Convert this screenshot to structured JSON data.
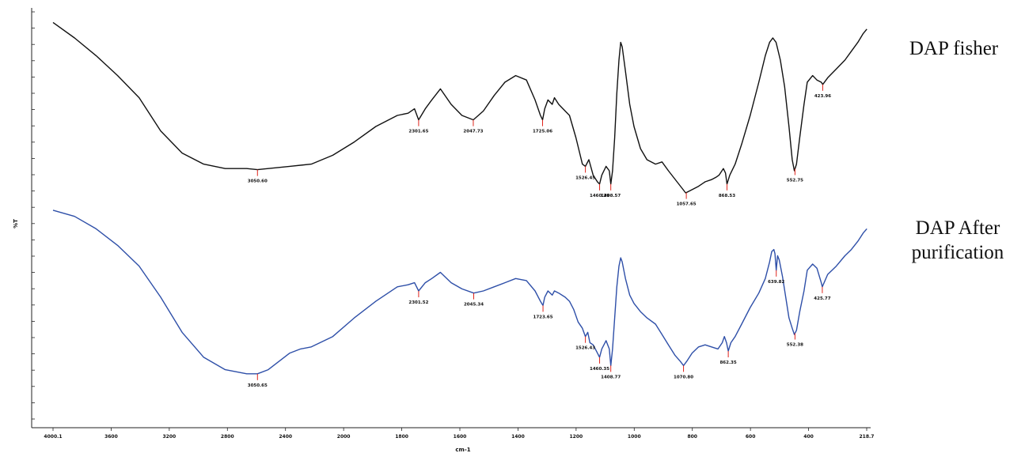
{
  "chart_data": {
    "type": "line",
    "xlabel": "cm-1",
    "ylabel": "%T",
    "xlim": [
      4000.1,
      218.7
    ],
    "x_tick_labels": [
      "4000.1",
      "3600",
      "3200",
      "2800",
      "2400",
      "2000",
      "1800",
      "1600",
      "1400",
      "1200",
      "1000",
      "800",
      "600",
      "400",
      "218.7"
    ],
    "grid": false,
    "series": [
      {
        "name": "DAP fisher",
        "color": "#111111",
        "peaks": [
          {
            "x": 3050,
            "label": "3050.60"
          },
          {
            "x": 2301,
            "label": "2301.65"
          },
          {
            "x": 2047,
            "label": "2047.73"
          },
          {
            "x": 1725,
            "label": "1725.06"
          },
          {
            "x": 1526,
            "label": "1526.45"
          },
          {
            "x": 1460,
            "label": "1460.29"
          },
          {
            "x": 1408,
            "label": "1408.57"
          },
          {
            "x": 1057,
            "label": "1057.65"
          },
          {
            "x": 868,
            "label": "868.53"
          },
          {
            "x": 552,
            "label": "552.75"
          },
          {
            "x": 423,
            "label": "423.96"
          }
        ],
        "points": [
          [
            4000,
            97
          ],
          [
            3900,
            90
          ],
          [
            3800,
            82
          ],
          [
            3700,
            73
          ],
          [
            3600,
            63
          ],
          [
            3500,
            48
          ],
          [
            3400,
            38
          ],
          [
            3300,
            33
          ],
          [
            3200,
            31
          ],
          [
            3100,
            31
          ],
          [
            3050,
            30.5
          ],
          [
            3000,
            31
          ],
          [
            2900,
            32
          ],
          [
            2800,
            33
          ],
          [
            2700,
            37
          ],
          [
            2600,
            43
          ],
          [
            2500,
            50
          ],
          [
            2400,
            55
          ],
          [
            2350,
            56
          ],
          [
            2320,
            58
          ],
          [
            2301,
            53
          ],
          [
            2270,
            58
          ],
          [
            2240,
            62
          ],
          [
            2200,
            67
          ],
          [
            2150,
            60
          ],
          [
            2100,
            55
          ],
          [
            2047,
            53
          ],
          [
            2000,
            57
          ],
          [
            1950,
            64
          ],
          [
            1900,
            70
          ],
          [
            1850,
            73
          ],
          [
            1800,
            71
          ],
          [
            1760,
            62
          ],
          [
            1735,
            55
          ],
          [
            1725,
            53
          ],
          [
            1715,
            58
          ],
          [
            1700,
            62
          ],
          [
            1680,
            60
          ],
          [
            1670,
            63
          ],
          [
            1650,
            60
          ],
          [
            1620,
            57
          ],
          [
            1600,
            55
          ],
          [
            1570,
            45
          ],
          [
            1540,
            33
          ],
          [
            1526,
            32
          ],
          [
            1510,
            35
          ],
          [
            1490,
            28
          ],
          [
            1470,
            25
          ],
          [
            1460,
            24
          ],
          [
            1450,
            28
          ],
          [
            1430,
            32
          ],
          [
            1415,
            30
          ],
          [
            1408,
            24
          ],
          [
            1400,
            30
          ],
          [
            1390,
            45
          ],
          [
            1380,
            65
          ],
          [
            1370,
            80
          ],
          [
            1362,
            88
          ],
          [
            1355,
            86
          ],
          [
            1340,
            75
          ],
          [
            1320,
            60
          ],
          [
            1300,
            50
          ],
          [
            1270,
            40
          ],
          [
            1240,
            35
          ],
          [
            1200,
            33
          ],
          [
            1170,
            34
          ],
          [
            1140,
            30
          ],
          [
            1100,
            25
          ],
          [
            1060,
            20
          ],
          [
            1040,
            21
          ],
          [
            1000,
            23
          ],
          [
            970,
            25
          ],
          [
            940,
            26
          ],
          [
            920,
            27
          ],
          [
            905,
            28
          ],
          [
            885,
            31
          ],
          [
            875,
            29
          ],
          [
            868,
            24
          ],
          [
            855,
            28
          ],
          [
            830,
            33
          ],
          [
            800,
            42
          ],
          [
            760,
            55
          ],
          [
            720,
            70
          ],
          [
            690,
            82
          ],
          [
            670,
            88
          ],
          [
            655,
            90
          ],
          [
            640,
            88
          ],
          [
            620,
            80
          ],
          [
            600,
            68
          ],
          [
            580,
            50
          ],
          [
            565,
            35
          ],
          [
            555,
            30
          ],
          [
            545,
            33
          ],
          [
            530,
            45
          ],
          [
            510,
            60
          ],
          [
            495,
            70
          ],
          [
            470,
            73
          ],
          [
            450,
            71
          ],
          [
            430,
            70
          ],
          [
            423,
            69
          ],
          [
            400,
            72
          ],
          [
            360,
            76
          ],
          [
            320,
            80
          ],
          [
            290,
            84
          ],
          [
            260,
            88
          ],
          [
            235,
            92
          ],
          [
            218,
            94
          ]
        ]
      },
      {
        "name": "DAP After purification",
        "color": "#2e4fa8",
        "peaks": [
          {
            "x": 3050,
            "label": "3050.65"
          },
          {
            "x": 2301,
            "label": "2301.52"
          },
          {
            "x": 2045,
            "label": "2045.34"
          },
          {
            "x": 1723,
            "label": "1723.65"
          },
          {
            "x": 1526,
            "label": "1526.43"
          },
          {
            "x": 1460,
            "label": "1460.35"
          },
          {
            "x": 1408,
            "label": "1408.77"
          },
          {
            "x": 1070,
            "label": "1070.80"
          },
          {
            "x": 862,
            "label": "862.35"
          },
          {
            "x": 639,
            "label": "639.82"
          },
          {
            "x": 552,
            "label": "552.38"
          },
          {
            "x": 425,
            "label": "425.77"
          }
        ],
        "points": [
          [
            4000,
            97
          ],
          [
            3900,
            94
          ],
          [
            3800,
            88
          ],
          [
            3700,
            80
          ],
          [
            3600,
            70
          ],
          [
            3500,
            55
          ],
          [
            3400,
            38
          ],
          [
            3300,
            26
          ],
          [
            3200,
            20
          ],
          [
            3100,
            18
          ],
          [
            3050,
            18
          ],
          [
            3000,
            20
          ],
          [
            2950,
            24
          ],
          [
            2900,
            28
          ],
          [
            2850,
            30
          ],
          [
            2800,
            31
          ],
          [
            2700,
            36
          ],
          [
            2600,
            45
          ],
          [
            2500,
            53
          ],
          [
            2400,
            60
          ],
          [
            2350,
            61
          ],
          [
            2320,
            62
          ],
          [
            2301,
            58
          ],
          [
            2270,
            62
          ],
          [
            2240,
            64
          ],
          [
            2200,
            67
          ],
          [
            2150,
            62
          ],
          [
            2100,
            59
          ],
          [
            2045,
            57
          ],
          [
            2000,
            58
          ],
          [
            1950,
            60
          ],
          [
            1900,
            62
          ],
          [
            1850,
            64
          ],
          [
            1800,
            63
          ],
          [
            1760,
            58
          ],
          [
            1735,
            53
          ],
          [
            1723,
            51
          ],
          [
            1715,
            55
          ],
          [
            1700,
            58
          ],
          [
            1680,
            56
          ],
          [
            1670,
            58
          ],
          [
            1650,
            57
          ],
          [
            1620,
            55
          ],
          [
            1600,
            53
          ],
          [
            1580,
            49
          ],
          [
            1560,
            43
          ],
          [
            1540,
            40
          ],
          [
            1526,
            36
          ],
          [
            1515,
            38
          ],
          [
            1505,
            33
          ],
          [
            1490,
            32
          ],
          [
            1470,
            28
          ],
          [
            1460,
            26
          ],
          [
            1450,
            30
          ],
          [
            1430,
            34
          ],
          [
            1415,
            30
          ],
          [
            1408,
            22
          ],
          [
            1400,
            30
          ],
          [
            1390,
            45
          ],
          [
            1380,
            60
          ],
          [
            1370,
            70
          ],
          [
            1362,
            74
          ],
          [
            1355,
            72
          ],
          [
            1340,
            64
          ],
          [
            1320,
            56
          ],
          [
            1300,
            52
          ],
          [
            1270,
            48
          ],
          [
            1240,
            45
          ],
          [
            1200,
            42
          ],
          [
            1170,
            37
          ],
          [
            1140,
            32
          ],
          [
            1110,
            27
          ],
          [
            1085,
            24
          ],
          [
            1070,
            22
          ],
          [
            1055,
            24
          ],
          [
            1030,
            28
          ],
          [
            1000,
            31
          ],
          [
            970,
            32
          ],
          [
            940,
            31
          ],
          [
            910,
            30
          ],
          [
            890,
            33
          ],
          [
            880,
            36
          ],
          [
            870,
            33
          ],
          [
            862,
            29
          ],
          [
            850,
            33
          ],
          [
            830,
            36
          ],
          [
            800,
            42
          ],
          [
            760,
            50
          ],
          [
            720,
            57
          ],
          [
            690,
            64
          ],
          [
            670,
            72
          ],
          [
            660,
            77
          ],
          [
            650,
            78
          ],
          [
            645,
            76
          ],
          [
            639,
            68
          ],
          [
            633,
            75
          ],
          [
            625,
            73
          ],
          [
            610,
            65
          ],
          [
            595,
            55
          ],
          [
            580,
            45
          ],
          [
            565,
            40
          ],
          [
            555,
            37
          ],
          [
            545,
            39
          ],
          [
            530,
            48
          ],
          [
            510,
            58
          ],
          [
            495,
            68
          ],
          [
            470,
            71
          ],
          [
            450,
            69
          ],
          [
            430,
            62
          ],
          [
            425,
            60
          ],
          [
            400,
            66
          ],
          [
            360,
            70
          ],
          [
            320,
            75
          ],
          [
            290,
            78
          ],
          [
            260,
            82
          ],
          [
            235,
            86
          ],
          [
            218,
            88
          ]
        ]
      }
    ]
  },
  "labels": {
    "series_1": "DAP fisher",
    "series_2_line1": "DAP After",
    "series_2_line2": "purification"
  }
}
